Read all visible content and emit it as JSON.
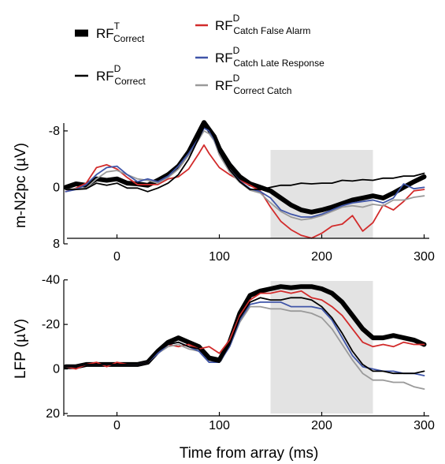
{
  "legend": {
    "items": [
      {
        "id": "rft_correct",
        "main": "RF",
        "sup": "T",
        "sub": "Correct",
        "color": "#000000",
        "width": 6
      },
      {
        "id": "rfd_correct",
        "main": "RF",
        "sup": "D",
        "sub": "Correct",
        "color": "#000000",
        "width": 2
      },
      {
        "id": "rfd_catch_fa",
        "main": "RF",
        "sup": "D",
        "sub": "Catch False Alarm",
        "color": "#d22b2b",
        "width": 2
      },
      {
        "id": "rfd_catch_late",
        "main": "RF",
        "sup": "D",
        "sub": "Catch Late Response",
        "color": "#3f55a8",
        "width": 2
      },
      {
        "id": "rfd_correct_catch",
        "main": "RF",
        "sup": "D",
        "sub": "Correct Catch",
        "color": "#9a9a9a",
        "width": 2
      }
    ]
  },
  "shared_xlabel": "Time from array (ms)",
  "chart_data": [
    {
      "type": "line",
      "panel": "top",
      "ylabel": "m-N2pc (µV)",
      "xlim": [
        -50,
        300
      ],
      "ylim": [
        8,
        -10
      ],
      "y_inverted": true,
      "xticks": [
        0,
        100,
        200,
        300
      ],
      "yticks": [
        -8,
        0,
        8
      ],
      "xtick_labels": [
        "0",
        "100",
        "200",
        "300"
      ],
      "ytick_labels": [
        "-8",
        "0",
        "8"
      ],
      "shaded_window": [
        150,
        250
      ],
      "x": [
        -50,
        -40,
        -30,
        -20,
        -10,
        0,
        10,
        20,
        30,
        40,
        50,
        60,
        70,
        80,
        85,
        90,
        95,
        100,
        110,
        120,
        130,
        140,
        150,
        160,
        170,
        180,
        190,
        200,
        210,
        220,
        230,
        240,
        250,
        260,
        270,
        280,
        290,
        300
      ],
      "series": [
        {
          "ref": "rft_correct",
          "values": [
            0,
            -0.5,
            -0.3,
            -1.2,
            -1.0,
            -1.2,
            -0.6,
            -0.5,
            -0.3,
            -1.0,
            -1.8,
            -3.0,
            -5.0,
            -7.8,
            -9.2,
            -8.2,
            -7.2,
            -5.5,
            -3.2,
            -1.5,
            -0.5,
            0.0,
            0.5,
            1.5,
            2.5,
            3.2,
            3.5,
            3.2,
            2.8,
            2.3,
            1.8,
            1.5,
            1.2,
            1.5,
            0.8,
            0.0,
            -0.8,
            -1.5
          ]
        },
        {
          "ref": "rfd_correct",
          "values": [
            0.3,
            0.3,
            0.2,
            -0.6,
            -0.3,
            -0.6,
            0.1,
            0.1,
            0.6,
            0.1,
            -0.6,
            -1.8,
            -4.0,
            -7.0,
            -8.6,
            -8.3,
            -7.0,
            -5.0,
            -2.5,
            -0.8,
            0.3,
            0.3,
            0.0,
            -0.3,
            -0.3,
            -0.6,
            -0.5,
            -0.6,
            -0.6,
            -1.0,
            -0.9,
            -1.1,
            -1.0,
            -1.3,
            -1.3,
            -1.6,
            -1.6,
            -2.0
          ]
        },
        {
          "ref": "rfd_catch_fa",
          "values": [
            0.6,
            0.1,
            -0.6,
            -2.8,
            -3.2,
            -2.6,
            -1.4,
            -0.4,
            -0.4,
            -0.4,
            -1.2,
            -1.5,
            -2.6,
            -4.8,
            -6.0,
            -4.8,
            -3.8,
            -2.8,
            -1.8,
            -1.0,
            -0.3,
            0.5,
            2.8,
            4.8,
            6.0,
            6.8,
            7.2,
            6.5,
            5.5,
            5.2,
            4.0,
            6.2,
            5.0,
            2.5,
            3.2,
            2.0,
            0.5,
            0.3
          ]
        },
        {
          "ref": "rfd_catch_late",
          "values": [
            0.6,
            0.3,
            -0.4,
            -1.8,
            -2.8,
            -3.0,
            -1.8,
            -0.8,
            -1.2,
            -0.8,
            -1.6,
            -3.0,
            -4.8,
            -7.0,
            -8.4,
            -8.0,
            -6.8,
            -5.0,
            -2.5,
            -0.9,
            0.2,
            0.6,
            1.5,
            3.2,
            3.8,
            4.2,
            4.2,
            3.8,
            3.2,
            2.6,
            2.2,
            2.0,
            1.8,
            2.2,
            1.5,
            -0.5,
            0.2,
            0.0
          ]
        },
        {
          "ref": "rfd_correct_catch",
          "values": [
            0.3,
            0.2,
            0.1,
            -1.2,
            -2.2,
            -2.4,
            -1.8,
            -1.2,
            -1.0,
            -0.6,
            -1.4,
            -2.6,
            -4.6,
            -6.8,
            -8.0,
            -7.6,
            -6.6,
            -4.6,
            -2.2,
            -0.7,
            0.4,
            0.8,
            2.2,
            3.4,
            4.2,
            4.6,
            4.4,
            4.0,
            3.4,
            2.8,
            2.6,
            2.8,
            2.4,
            2.6,
            1.8,
            1.8,
            1.4,
            1.2
          ]
        }
      ]
    },
    {
      "type": "line",
      "panel": "bottom",
      "ylabel": "LFP (µV)",
      "xlim": [
        -50,
        300
      ],
      "ylim": [
        20,
        -40
      ],
      "y_inverted": true,
      "xticks": [
        0,
        100,
        200,
        300
      ],
      "yticks": [
        -40,
        -20,
        0,
        20
      ],
      "xtick_labels": [
        "0",
        "100",
        "200",
        "300"
      ],
      "ytick_labels": [
        "-40",
        "-20",
        "0",
        "20"
      ],
      "shaded_window": [
        150,
        250
      ],
      "x": [
        -50,
        -40,
        -30,
        -20,
        -10,
        0,
        10,
        20,
        30,
        40,
        50,
        60,
        70,
        80,
        90,
        100,
        110,
        120,
        130,
        140,
        150,
        160,
        170,
        180,
        190,
        200,
        210,
        220,
        230,
        240,
        250,
        260,
        270,
        280,
        290,
        300
      ],
      "series": [
        {
          "ref": "rft_correct",
          "values": [
            -1,
            -1,
            -2,
            -2,
            -2,
            -2,
            -2,
            -2,
            -3,
            -8,
            -12,
            -14,
            -12,
            -10,
            -5,
            -4,
            -12,
            -25,
            -33,
            -35,
            -36,
            -37,
            -36.5,
            -37,
            -37,
            -36,
            -34,
            -30,
            -24,
            -18,
            -14,
            -14,
            -15,
            -14,
            -13,
            -11
          ]
        },
        {
          "ref": "rfd_correct",
          "values": [
            -1,
            -1,
            -2,
            -2,
            -2,
            -2,
            -2,
            -2,
            -3,
            -8,
            -11,
            -12,
            -10,
            -9,
            -4,
            -3,
            -11,
            -23,
            -30,
            -32,
            -31,
            -31,
            -32,
            -32,
            -31,
            -28,
            -23,
            -16,
            -8,
            -2,
            1,
            1,
            2,
            2,
            2,
            1
          ]
        },
        {
          "ref": "rfd_catch_fa",
          "values": [
            -1,
            0,
            -2,
            -3,
            -1,
            -3,
            -2,
            -2,
            -3,
            -7,
            -11,
            -10,
            -11,
            -9,
            -10,
            -7,
            -13,
            -24,
            -31,
            -34,
            -34,
            -35,
            -34,
            -35,
            -32,
            -31,
            -28,
            -24,
            -18,
            -12,
            -10,
            -11,
            -10,
            -12,
            -11,
            -11
          ]
        },
        {
          "ref": "rfd_catch_late",
          "values": [
            -1,
            -1,
            -2,
            -2,
            -2,
            -2,
            -2,
            -2,
            -3,
            -7,
            -11,
            -12,
            -10,
            -8,
            -3,
            -3,
            -10,
            -22,
            -29,
            -30,
            -30,
            -30,
            -28,
            -28,
            -28,
            -27,
            -22,
            -14,
            -6,
            -1,
            0,
            1,
            1,
            2,
            2,
            3
          ]
        },
        {
          "ref": "rfd_correct_catch",
          "values": [
            -1,
            -1,
            -2,
            -2,
            -2,
            -2,
            -2,
            -2,
            -3,
            -7,
            -10,
            -11,
            -9,
            -8,
            -3,
            -3,
            -10,
            -21,
            -28,
            -28,
            -27,
            -27,
            -26,
            -26,
            -25,
            -23,
            -18,
            -11,
            -4,
            2,
            5,
            5,
            6,
            6,
            8,
            9
          ]
        }
      ]
    }
  ]
}
